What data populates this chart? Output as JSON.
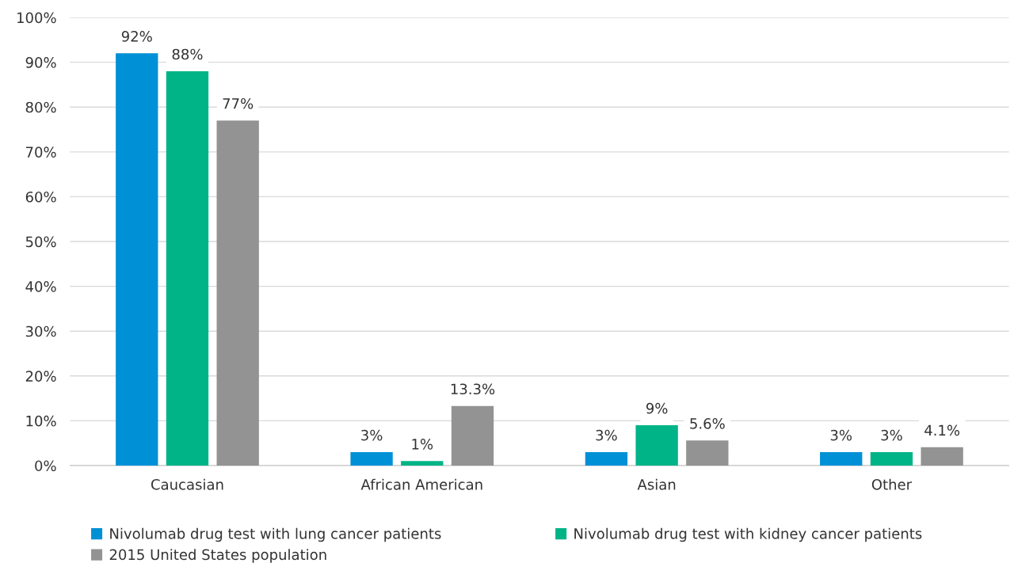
{
  "chart_data": {
    "type": "bar",
    "categories": [
      "Caucasian",
      "African American",
      "Asian",
      "Other"
    ],
    "series": [
      {
        "name": "Nivolumab drug test with lung cancer patients",
        "color": "#0090d6",
        "values": [
          92,
          3,
          3,
          3
        ],
        "value_labels": [
          "92%",
          "3%",
          "3%",
          "3%"
        ]
      },
      {
        "name": "Nivolumab drug test with kidney cancer patients",
        "color": "#00b487",
        "values": [
          88,
          1,
          9,
          3
        ],
        "value_labels": [
          "88%",
          "1%",
          "9%",
          "3%"
        ]
      },
      {
        "name": "2015 United States population",
        "color": "#939393",
        "values": [
          77,
          13.3,
          5.6,
          4.1
        ],
        "value_labels": [
          "77%",
          "13.3%",
          "5.6%",
          "4.1%"
        ]
      }
    ],
    "ylim": [
      0,
      100
    ],
    "yticks": [
      {
        "value": 0,
        "label": "0%"
      },
      {
        "value": 10,
        "label": "10%"
      },
      {
        "value": 20,
        "label": "20%"
      },
      {
        "value": 30,
        "label": "30%"
      },
      {
        "value": 40,
        "label": "40%"
      },
      {
        "value": 50,
        "label": "50%"
      },
      {
        "value": 60,
        "label": "60%"
      },
      {
        "value": 70,
        "label": "70%"
      },
      {
        "value": 80,
        "label": "80%"
      },
      {
        "value": 90,
        "label": "90%"
      },
      {
        "value": 100,
        "label": "100%"
      }
    ],
    "grid": "y",
    "legend": "bottom"
  }
}
